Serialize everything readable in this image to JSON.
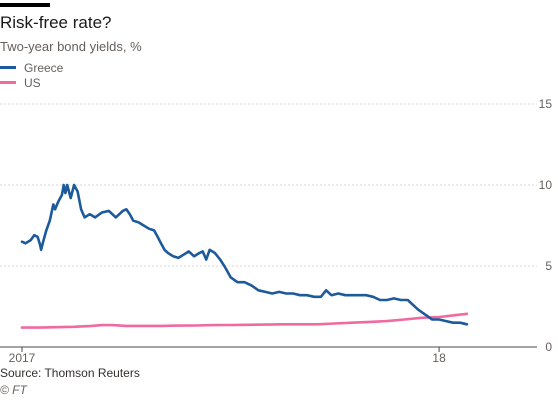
{
  "title": "Risk-free rate?",
  "subtitle": "Two-year bond yields, %",
  "source": "Source: Thomson Reuters",
  "credit": "© FT",
  "colors": {
    "greece": "#1d5a9b",
    "us": "#f06aa0",
    "grid": "#d9d7d5",
    "axis": "#4d4845"
  },
  "chart_data": {
    "type": "line",
    "title": "Risk-free rate?",
    "subtitle": "Two-year bond yields, %",
    "xlabel": "",
    "ylabel": "",
    "ylim": [
      0,
      15
    ],
    "yticks": [
      0,
      5,
      10,
      15
    ],
    "y_axis_side": "right",
    "xlim": [
      0,
      14.5
    ],
    "xticks": [
      {
        "x": 0,
        "label": "2017"
      },
      {
        "x": 12,
        "label": "18"
      }
    ],
    "grid": "horizontal",
    "legend_position": "top-left",
    "series": [
      {
        "name": "Greece",
        "color": "#1d5a9b",
        "points": [
          [
            0.0,
            6.5
          ],
          [
            0.1,
            6.4
          ],
          [
            0.25,
            6.6
          ],
          [
            0.35,
            6.9
          ],
          [
            0.45,
            6.8
          ],
          [
            0.52,
            6.3
          ],
          [
            0.55,
            6.0
          ],
          [
            0.62,
            6.6
          ],
          [
            0.7,
            7.2
          ],
          [
            0.8,
            7.8
          ],
          [
            0.9,
            8.8
          ],
          [
            0.95,
            8.5
          ],
          [
            1.05,
            9.0
          ],
          [
            1.15,
            9.4
          ],
          [
            1.2,
            10.0
          ],
          [
            1.25,
            9.5
          ],
          [
            1.3,
            10.0
          ],
          [
            1.4,
            9.2
          ],
          [
            1.5,
            10.0
          ],
          [
            1.6,
            9.6
          ],
          [
            1.7,
            8.5
          ],
          [
            1.8,
            8.0
          ],
          [
            1.95,
            8.2
          ],
          [
            2.1,
            8.0
          ],
          [
            2.3,
            8.3
          ],
          [
            2.5,
            8.4
          ],
          [
            2.7,
            8.0
          ],
          [
            2.9,
            8.4
          ],
          [
            3.0,
            8.5
          ],
          [
            3.1,
            8.2
          ],
          [
            3.2,
            7.8
          ],
          [
            3.35,
            7.7
          ],
          [
            3.5,
            7.5
          ],
          [
            3.65,
            7.3
          ],
          [
            3.8,
            7.2
          ],
          [
            3.9,
            6.8
          ],
          [
            4.0,
            6.4
          ],
          [
            4.1,
            6.0
          ],
          [
            4.2,
            5.8
          ],
          [
            4.35,
            5.6
          ],
          [
            4.5,
            5.5
          ],
          [
            4.65,
            5.7
          ],
          [
            4.8,
            5.9
          ],
          [
            4.95,
            5.6
          ],
          [
            5.1,
            5.8
          ],
          [
            5.2,
            5.9
          ],
          [
            5.3,
            5.4
          ],
          [
            5.4,
            6.0
          ],
          [
            5.55,
            5.8
          ],
          [
            5.7,
            5.4
          ],
          [
            5.85,
            4.9
          ],
          [
            6.0,
            4.3
          ],
          [
            6.2,
            4.0
          ],
          [
            6.4,
            4.0
          ],
          [
            6.6,
            3.8
          ],
          [
            6.8,
            3.5
          ],
          [
            7.0,
            3.4
          ],
          [
            7.2,
            3.3
          ],
          [
            7.4,
            3.4
          ],
          [
            7.6,
            3.3
          ],
          [
            7.8,
            3.3
          ],
          [
            8.0,
            3.2
          ],
          [
            8.2,
            3.2
          ],
          [
            8.4,
            3.1
          ],
          [
            8.6,
            3.1
          ],
          [
            8.75,
            3.5
          ],
          [
            8.9,
            3.2
          ],
          [
            9.1,
            3.3
          ],
          [
            9.3,
            3.2
          ],
          [
            9.5,
            3.2
          ],
          [
            9.7,
            3.2
          ],
          [
            9.9,
            3.2
          ],
          [
            10.1,
            3.1
          ],
          [
            10.3,
            2.9
          ],
          [
            10.5,
            2.9
          ],
          [
            10.7,
            3.0
          ],
          [
            10.9,
            2.9
          ],
          [
            11.1,
            2.9
          ],
          [
            11.2,
            2.7
          ],
          [
            11.4,
            2.3
          ],
          [
            11.6,
            2.0
          ],
          [
            11.8,
            1.7
          ],
          [
            12.0,
            1.7
          ],
          [
            12.2,
            1.6
          ],
          [
            12.4,
            1.5
          ],
          [
            12.6,
            1.5
          ],
          [
            12.8,
            1.4
          ]
        ]
      },
      {
        "name": "US",
        "color": "#f06aa0",
        "points": [
          [
            0.0,
            1.2
          ],
          [
            0.5,
            1.2
          ],
          [
            1.0,
            1.22
          ],
          [
            1.5,
            1.25
          ],
          [
            2.0,
            1.3
          ],
          [
            2.3,
            1.35
          ],
          [
            2.6,
            1.35
          ],
          [
            3.0,
            1.3
          ],
          [
            3.5,
            1.3
          ],
          [
            4.0,
            1.3
          ],
          [
            4.5,
            1.32
          ],
          [
            5.0,
            1.33
          ],
          [
            5.5,
            1.35
          ],
          [
            6.0,
            1.36
          ],
          [
            6.5,
            1.37
          ],
          [
            7.0,
            1.38
          ],
          [
            7.5,
            1.4
          ],
          [
            8.0,
            1.4
          ],
          [
            8.5,
            1.4
          ],
          [
            9.0,
            1.45
          ],
          [
            9.5,
            1.5
          ],
          [
            10.0,
            1.55
          ],
          [
            10.5,
            1.6
          ],
          [
            11.0,
            1.7
          ],
          [
            11.5,
            1.8
          ],
          [
            12.0,
            1.85
          ],
          [
            12.4,
            1.95
          ],
          [
            12.8,
            2.05
          ]
        ]
      }
    ]
  },
  "legend": [
    {
      "label": "Greece",
      "color": "#1d5a9b"
    },
    {
      "label": "US",
      "color": "#f06aa0"
    }
  ]
}
